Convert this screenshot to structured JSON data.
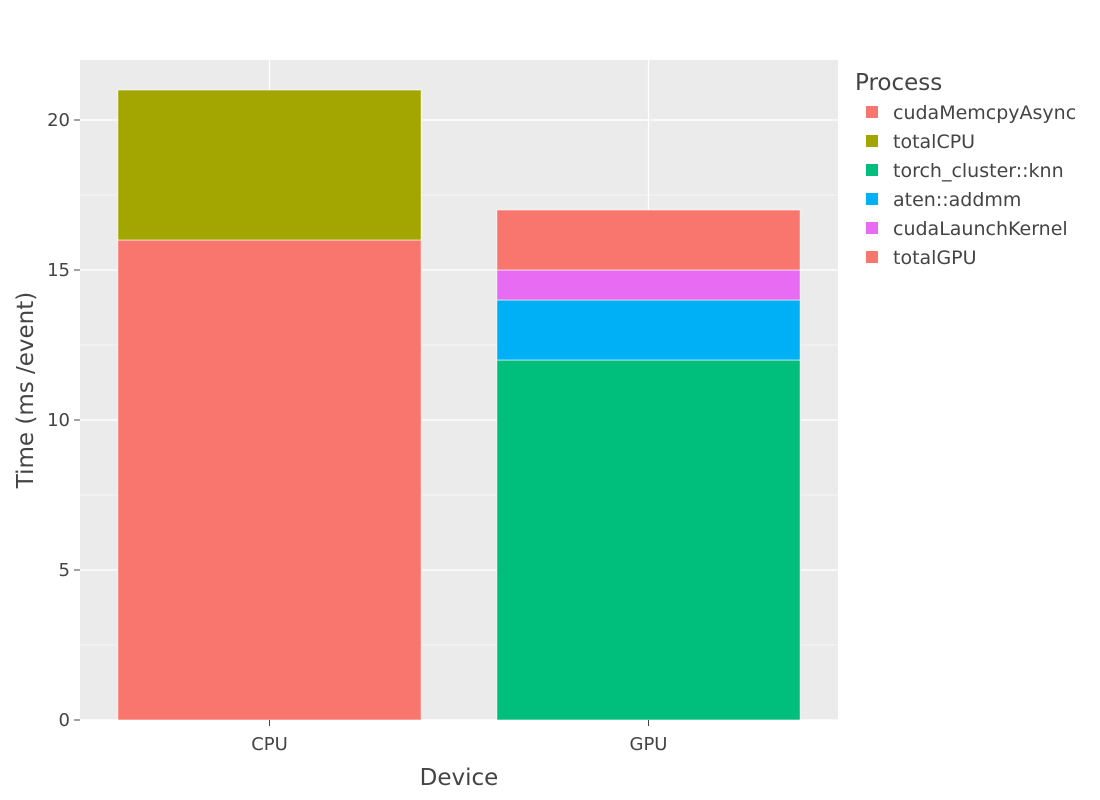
{
  "chart_data": {
    "type": "bar",
    "stacked": true,
    "categories": [
      "CPU",
      "GPU"
    ],
    "xlabel": "Device",
    "ylabel": "Time (ms /event)",
    "ylim": [
      0,
      22
    ],
    "yticks": [
      0,
      5,
      10,
      15,
      20
    ],
    "grid": true,
    "legend": {
      "title": "Process",
      "placement": "right"
    },
    "series": [
      {
        "name": "cudaMemcpyAsync",
        "color": "#F8766D",
        "values": [
          16,
          0
        ]
      },
      {
        "name": "totalCPU",
        "color": "#A3A500",
        "values": [
          5,
          0
        ]
      },
      {
        "name": "torch_cluster::knn",
        "color": "#00BF7D",
        "values": [
          0,
          12
        ]
      },
      {
        "name": "aten::addmm",
        "color": "#00B0F6",
        "values": [
          0,
          2
        ]
      },
      {
        "name": "cudaLaunchKernel",
        "color": "#E76BF3",
        "values": [
          0,
          1
        ]
      },
      {
        "name": "totalGPU",
        "color": "#F8766D",
        "values": [
          0,
          2
        ]
      }
    ],
    "colors": {
      "panel_background": "#EBEBEB",
      "gridline": "#FFFFFF",
      "text": "#444444"
    }
  }
}
